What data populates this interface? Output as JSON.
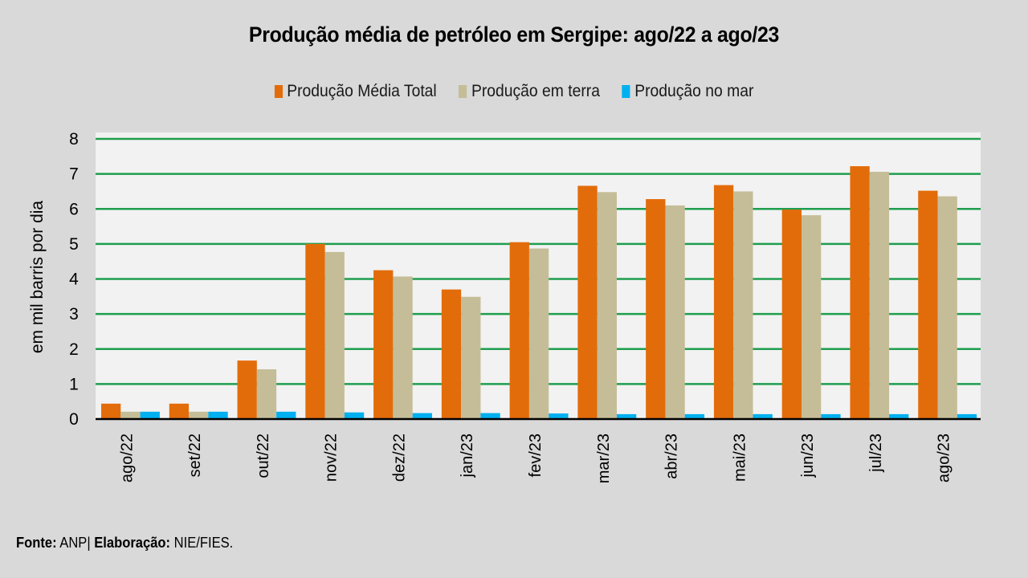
{
  "chart_data": {
    "type": "bar",
    "title": "Produção média de petróleo em Sergipe: ago/22 a ago/23",
    "xlabel": "",
    "ylabel": "em mil barris por dia",
    "ylim": [
      0,
      8
    ],
    "yticks": [
      0,
      1,
      2,
      3,
      4,
      5,
      6,
      7,
      8
    ],
    "grid": true,
    "legend_position": "top-center",
    "categories": [
      "ago/22",
      "set/22",
      "out/22",
      "nov/22",
      "dez/22",
      "jan/23",
      "fev/23",
      "mar/23",
      "abr/23",
      "mai/23",
      "jun/23",
      "jul/23",
      "ago/23"
    ],
    "series": [
      {
        "name": "Produção Média Total",
        "color": "#E36C0A",
        "values": [
          0.44,
          0.44,
          1.67,
          5.0,
          4.25,
          3.7,
          5.05,
          6.66,
          6.28,
          6.68,
          5.98,
          7.22,
          6.52
        ]
      },
      {
        "name": "Produção em terra",
        "color": "#C4BD97",
        "values": [
          0.21,
          0.21,
          1.42,
          4.77,
          4.07,
          3.49,
          4.87,
          6.48,
          6.1,
          6.5,
          5.82,
          7.06,
          6.36
        ]
      },
      {
        "name": "Produção no mar",
        "color": "#00B0F0",
        "values": [
          0.21,
          0.21,
          0.21,
          0.19,
          0.17,
          0.17,
          0.16,
          0.14,
          0.14,
          0.14,
          0.14,
          0.14,
          0.14
        ]
      }
    ]
  },
  "colors": {
    "background": "#D9D9D9",
    "plot_background": "#F2F2F2",
    "gridline": "#1E9E4E",
    "axis": "#000000"
  },
  "footer": {
    "source_label": "Fonte:",
    "source_value": "ANP|",
    "credit_label": "Elaboração:",
    "credit_value": "NIE/FIES."
  }
}
